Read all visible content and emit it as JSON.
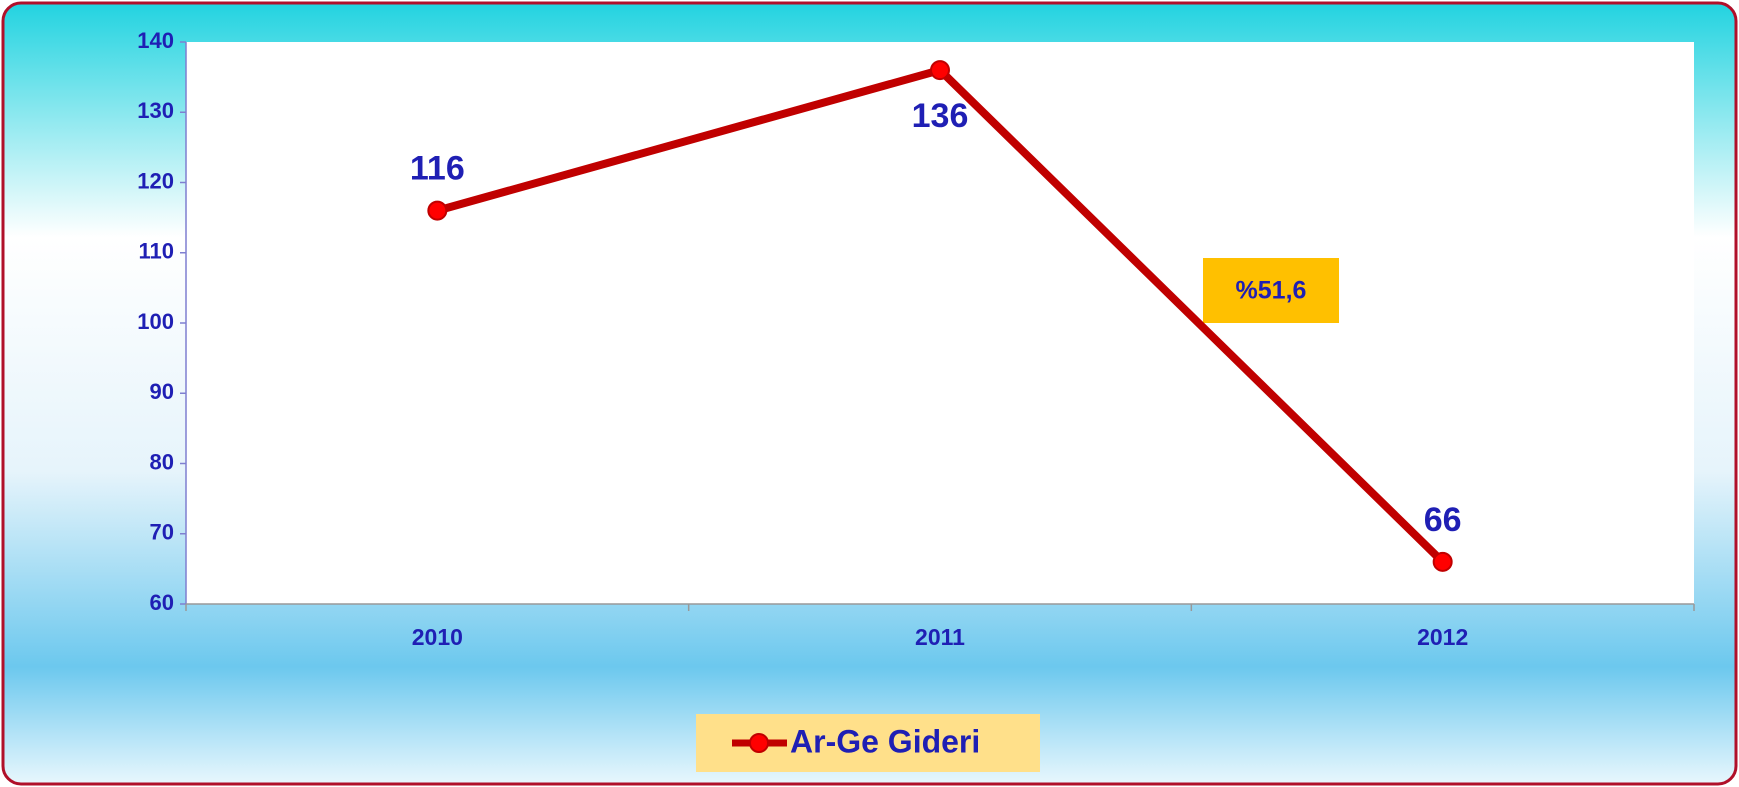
{
  "chart_data": {
    "type": "line",
    "categories": [
      "2010",
      "2011",
      "2012"
    ],
    "series": [
      {
        "name": "Ar-Ge Gideri",
        "color": "#c00000",
        "marker_color": "#ff0000",
        "values": [
          116,
          136,
          66
        ]
      }
    ],
    "ylim": [
      60,
      140
    ],
    "yticks": [
      60,
      70,
      80,
      90,
      100,
      110,
      120,
      130,
      140
    ],
    "annotation": "%51,6",
    "legend": "bottom",
    "grid": false
  }
}
